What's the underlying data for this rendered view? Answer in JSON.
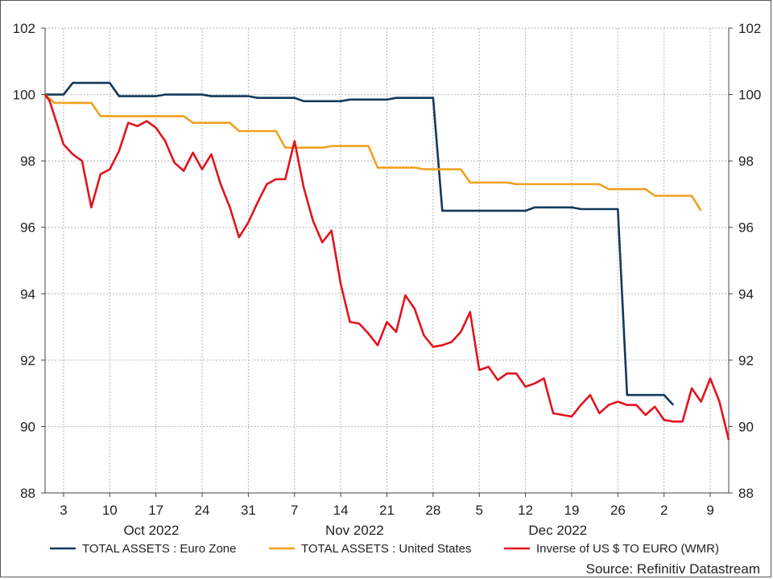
{
  "chart_data": {
    "type": "line",
    "y_left_ticks": [
      "88",
      "90",
      "92",
      "94",
      "96",
      "98",
      "100",
      "102"
    ],
    "y_right_ticks": [
      "88",
      "90",
      "92",
      "94",
      "96",
      "98",
      "100",
      "102"
    ],
    "ylim": [
      88,
      102
    ],
    "x_ticks": [
      "3",
      "10",
      "17",
      "24",
      "31",
      "7",
      "14",
      "21",
      "28",
      "5",
      "12",
      "19",
      "26",
      "2",
      "9"
    ],
    "months": [
      "Oct 2022",
      "Nov 2022",
      "Dec 2022"
    ],
    "grid": true,
    "legend_position": "bottom",
    "source": "Source: Refinitiv Datastream",
    "series": [
      {
        "name": "TOTAL ASSETS : Euro Zone",
        "color": "#13395c",
        "points": [
          [
            0,
            100.0
          ],
          [
            2,
            100.0
          ],
          [
            3,
            100.35
          ],
          [
            7,
            100.35
          ],
          [
            8,
            99.95
          ],
          [
            12,
            99.95
          ],
          [
            13,
            100.0
          ],
          [
            17,
            100.0
          ],
          [
            18,
            99.95
          ],
          [
            22,
            99.95
          ],
          [
            23,
            99.9
          ],
          [
            27,
            99.9
          ],
          [
            28,
            99.8
          ],
          [
            32,
            99.8
          ],
          [
            33,
            99.85
          ],
          [
            37,
            99.85
          ],
          [
            38,
            99.9
          ],
          [
            42,
            99.9
          ],
          [
            43,
            96.5
          ],
          [
            52,
            96.5
          ],
          [
            53,
            96.6
          ],
          [
            57,
            96.6
          ],
          [
            58,
            96.55
          ],
          [
            62,
            96.55
          ],
          [
            63,
            90.95
          ],
          [
            67,
            90.95
          ],
          [
            68,
            90.65
          ]
        ]
      },
      {
        "name": "TOTAL ASSETS : United States",
        "color": "#f0a020",
        "points": [
          [
            0,
            100.0
          ],
          [
            1,
            99.75
          ],
          [
            5,
            99.75
          ],
          [
            6,
            99.35
          ],
          [
            15,
            99.35
          ],
          [
            16,
            99.15
          ],
          [
            20,
            99.15
          ],
          [
            21,
            98.9
          ],
          [
            25,
            98.9
          ],
          [
            26,
            98.4
          ],
          [
            30,
            98.4
          ],
          [
            31,
            98.45
          ],
          [
            35,
            98.45
          ],
          [
            36,
            97.8
          ],
          [
            40,
            97.8
          ],
          [
            41,
            97.75
          ],
          [
            45,
            97.75
          ],
          [
            46,
            97.35
          ],
          [
            50,
            97.35
          ],
          [
            51,
            97.3
          ],
          [
            60,
            97.3
          ],
          [
            61,
            97.15
          ],
          [
            65,
            97.15
          ],
          [
            66,
            96.95
          ],
          [
            70,
            96.95
          ],
          [
            71,
            96.5
          ]
        ]
      },
      {
        "name": "Inverse of US $ TO EURO (WMR)",
        "color": "#e0141e",
        "points": [
          [
            0,
            100.0
          ],
          [
            0.5,
            99.8
          ],
          [
            2,
            98.5
          ],
          [
            3,
            98.2
          ],
          [
            4,
            98.0
          ],
          [
            5,
            96.6
          ],
          [
            6,
            97.6
          ],
          [
            7,
            97.75
          ],
          [
            8,
            98.3
          ],
          [
            9,
            99.15
          ],
          [
            10,
            99.05
          ],
          [
            11,
            99.2
          ],
          [
            12,
            99.0
          ],
          [
            13,
            98.6
          ],
          [
            14,
            97.95
          ],
          [
            15,
            97.7
          ],
          [
            16,
            98.25
          ],
          [
            17,
            97.75
          ],
          [
            18,
            98.2
          ],
          [
            19,
            97.3
          ],
          [
            20,
            96.6
          ],
          [
            21,
            95.7
          ],
          [
            22,
            96.15
          ],
          [
            23,
            96.75
          ],
          [
            24,
            97.3
          ],
          [
            25,
            97.45
          ],
          [
            26,
            97.45
          ],
          [
            27,
            98.6
          ],
          [
            28,
            97.2
          ],
          [
            29,
            96.2
          ],
          [
            30,
            95.55
          ],
          [
            31,
            95.9
          ],
          [
            32,
            94.3
          ],
          [
            33,
            93.15
          ],
          [
            34,
            93.1
          ],
          [
            35,
            92.8
          ],
          [
            36,
            92.45
          ],
          [
            37,
            93.15
          ],
          [
            38,
            92.85
          ],
          [
            39,
            93.95
          ],
          [
            40,
            93.55
          ],
          [
            41,
            92.75
          ],
          [
            42,
            92.4
          ],
          [
            43,
            92.45
          ],
          [
            44,
            92.55
          ],
          [
            45,
            92.85
          ],
          [
            46,
            93.45
          ],
          [
            47,
            91.7
          ],
          [
            48,
            91.8
          ],
          [
            49,
            91.4
          ],
          [
            50,
            91.6
          ],
          [
            51,
            91.6
          ],
          [
            52,
            91.2
          ],
          [
            53,
            91.3
          ],
          [
            54,
            91.45
          ],
          [
            55,
            90.4
          ],
          [
            56,
            90.35
          ],
          [
            57,
            90.3
          ],
          [
            58,
            90.65
          ],
          [
            59,
            90.95
          ],
          [
            60,
            90.4
          ],
          [
            61,
            90.65
          ],
          [
            62,
            90.75
          ],
          [
            63,
            90.65
          ],
          [
            64,
            90.65
          ],
          [
            65,
            90.35
          ],
          [
            66,
            90.6
          ],
          [
            67,
            90.2
          ],
          [
            68,
            90.15
          ],
          [
            69,
            90.15
          ],
          [
            70,
            91.15
          ],
          [
            71,
            90.75
          ],
          [
            72,
            91.45
          ],
          [
            73,
            90.75
          ],
          [
            74,
            89.6
          ]
        ]
      }
    ]
  }
}
